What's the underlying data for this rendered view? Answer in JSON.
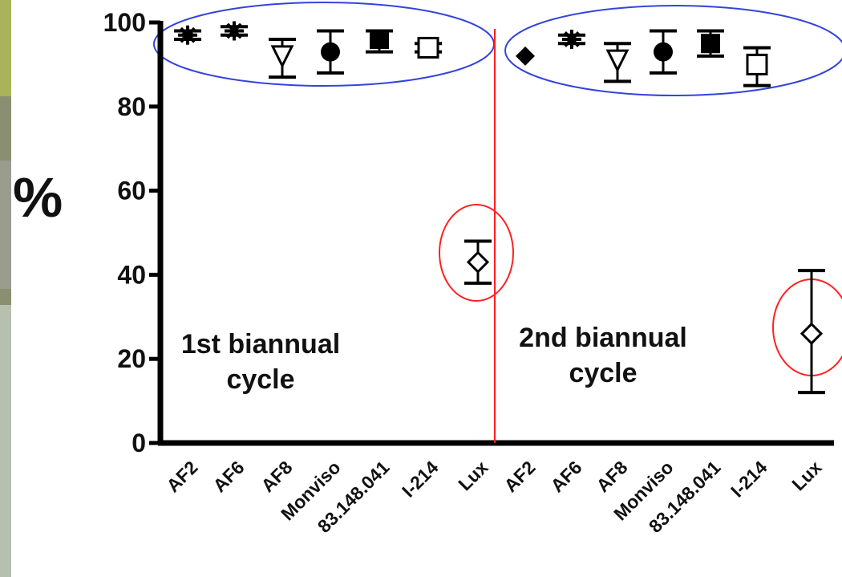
{
  "chart_data": {
    "type": "scatter",
    "ylabel": "%",
    "ylim": [
      0,
      100
    ],
    "yticks": [
      0,
      20,
      40,
      60,
      80,
      100
    ],
    "categories": [
      "AF2",
      "AF6",
      "AF8",
      "Monviso",
      "83.148.041",
      "I-214",
      "Lux",
      "AF2",
      "AF6",
      "AF8",
      "Monviso",
      "83.148.041",
      "I-214",
      "Lux"
    ],
    "groups": [
      {
        "label": "1st biannual\ncycle",
        "start_index": 0,
        "end_index": 6
      },
      {
        "label": "2nd biannual\ncycle",
        "start_index": 7,
        "end_index": 13
      }
    ],
    "series": [
      {
        "values": [
          97,
          98,
          92,
          93,
          96,
          94,
          43
        ],
        "err_low": [
          96,
          97,
          87,
          88,
          93,
          93,
          38
        ],
        "err_high": [
          98,
          99,
          96,
          98,
          98,
          95,
          48
        ],
        "markers": [
          "star",
          "asterisk",
          "tri-down-open",
          "circle",
          "square",
          "square-open",
          "diamond-open"
        ]
      },
      {
        "values": [
          92,
          96,
          91,
          93,
          95,
          90,
          26
        ],
        "err_low": [
          92,
          95,
          86,
          88,
          92,
          85,
          12
        ],
        "err_high": [
          92,
          97,
          95,
          98,
          98,
          94,
          41
        ],
        "markers": [
          "diamond",
          "asterisk",
          "tri-down-open",
          "circle",
          "square",
          "square-open",
          "diamond-open"
        ]
      }
    ],
    "colors": {
      "axis": "#000000",
      "divider": "#ff2020",
      "group_ellipse": "#3344dd",
      "outlier_circle": "#ff2020"
    }
  }
}
